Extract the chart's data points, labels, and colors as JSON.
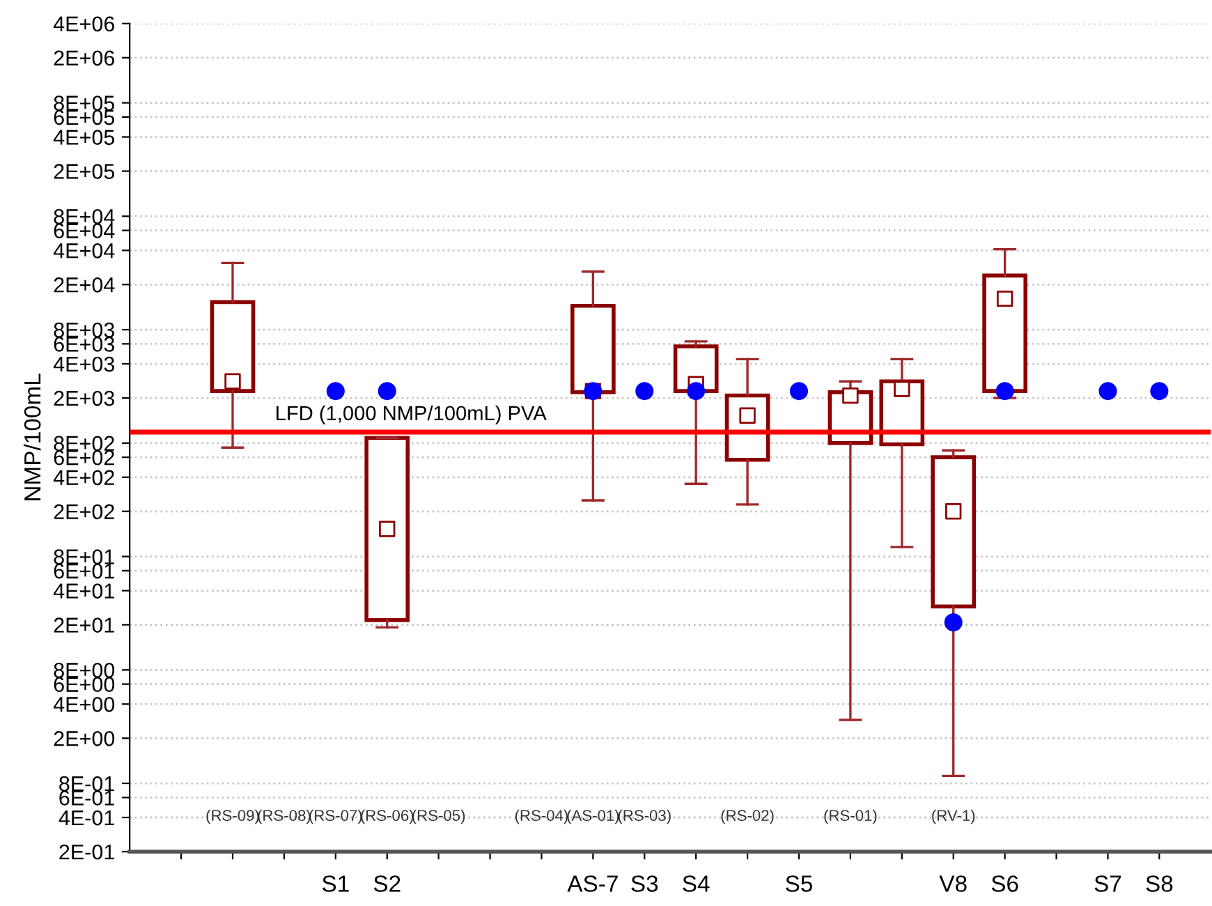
{
  "chart_data": {
    "type": "box",
    "ylabel": "NMP/100mL",
    "log": "y",
    "grid": "y",
    "categories": [
      null,
      null,
      null,
      "S1",
      "S2",
      null,
      null,
      null,
      "AS-7",
      "S3",
      "S4",
      null,
      "S5",
      null,
      null,
      "V8",
      "S6",
      null,
      "S7",
      "S8"
    ],
    "ylim": [
      0.2,
      4000000
    ],
    "yticks": [
      {
        "value": 0.2,
        "label": "2E-01"
      },
      {
        "value": 0.4,
        "label": "4E-01"
      },
      {
        "value": 0.6,
        "label": "6E-01"
      },
      {
        "value": 0.8,
        "label": "8E-01"
      },
      {
        "value": 2,
        "label": "2E+00"
      },
      {
        "value": 4,
        "label": "4E+00"
      },
      {
        "value": 6,
        "label": "6E+00"
      },
      {
        "value": 8,
        "label": "8E+00"
      },
      {
        "value": 20,
        "label": "2E+01"
      },
      {
        "value": 40,
        "label": "4E+01"
      },
      {
        "value": 60,
        "label": "6E+01"
      },
      {
        "value": 80,
        "label": "8E+01"
      },
      {
        "value": 200,
        "label": "2E+02"
      },
      {
        "value": 400,
        "label": "4E+02"
      },
      {
        "value": 600,
        "label": "6E+02"
      },
      {
        "value": 800,
        "label": "8E+02"
      },
      {
        "value": 2000,
        "label": "2E+03"
      },
      {
        "value": 4000,
        "label": "4E+03"
      },
      {
        "value": 6000,
        "label": "6E+03"
      },
      {
        "value": 8000,
        "label": "8E+03"
      },
      {
        "value": 20000,
        "label": "2E+04"
      },
      {
        "value": 40000,
        "label": "4E+04"
      },
      {
        "value": 60000,
        "label": "6E+04"
      },
      {
        "value": 80000,
        "label": "8E+04"
      },
      {
        "value": 200000,
        "label": "2E+05"
      },
      {
        "value": 400000,
        "label": "4E+05"
      },
      {
        "value": 600000,
        "label": "6E+05"
      },
      {
        "value": 800000,
        "label": "8E+05"
      },
      {
        "value": 2000000,
        "label": "2E+06"
      },
      {
        "value": 4000000,
        "label": "4E+06"
      }
    ],
    "boxes": [
      null,
      {
        "low": 730,
        "q1": 2300,
        "median": 2800,
        "q3": 14000,
        "high": 31000
      },
      null,
      null,
      {
        "low": 19,
        "q1": 22,
        "median": 140,
        "q3": 890,
        "high": 890
      },
      null,
      null,
      null,
      {
        "low": 250,
        "q1": 2250,
        "median": 2300,
        "q3": 13000,
        "high": 26000
      },
      null,
      {
        "low": 350,
        "q1": 2300,
        "median": 2650,
        "q3": 5700,
        "high": 6300
      },
      {
        "low": 230,
        "q1": 570,
        "median": 1400,
        "q3": 2100,
        "high": 4400
      },
      null,
      {
        "low": 2.9,
        "q1": 800,
        "median": 2100,
        "q3": 2250,
        "high": 2800
      },
      {
        "low": 97,
        "q1": 780,
        "median": 2400,
        "q3": 2800,
        "high": 4400
      },
      {
        "low": 0.93,
        "q1": 29,
        "median": 200,
        "q3": 600,
        "high": 690
      },
      {
        "low": 2000,
        "q1": 2300,
        "median": 15000,
        "q3": 24000,
        "high": 41000
      },
      null,
      null,
      null
    ],
    "color": "#8b0000",
    "series": [
      {
        "type": "scatter",
        "color": "#0000ff",
        "marker": "circle",
        "x": [
          "S1",
          "S2",
          "AS-7",
          "S3",
          "S4",
          "S5",
          "V8",
          "S6",
          "S7",
          "S8"
        ],
        "values": [
          2300,
          2300,
          2300,
          2300,
          2300,
          2300,
          21,
          2300,
          2300,
          2300
        ]
      }
    ],
    "ref_lines": [
      {
        "axis": "y",
        "value": 1000,
        "label": "LFD (1,000 NMP/100mL) PVA",
        "color": "#ff0000"
      }
    ],
    "annotations": [
      "(RS-09)",
      "(RS-08)",
      "(RS-07)",
      "(RS-06)",
      "(RS-05)",
      "(RS-04)",
      "(AS-01)",
      "(RS-03)",
      "(RS-02)",
      "(RS-01)",
      "(RV-1)"
    ]
  }
}
